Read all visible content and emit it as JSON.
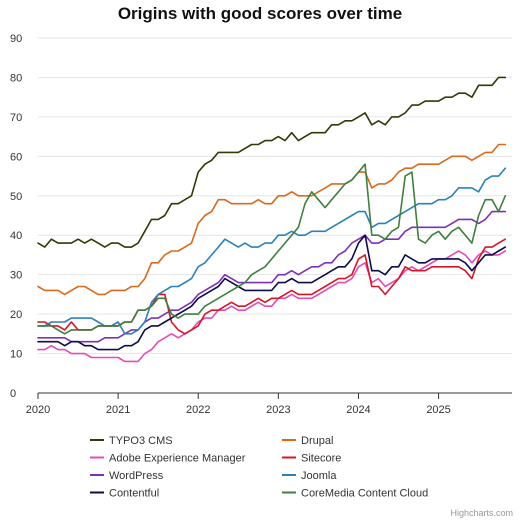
{
  "chart_data": {
    "type": "line",
    "title": "Origins with good scores over time",
    "credit": "Highcharts.com",
    "ylim": [
      0,
      90
    ],
    "y_ticks": [
      0,
      10,
      20,
      30,
      40,
      50,
      60,
      70,
      80,
      90
    ],
    "x_range": [
      "2020-01",
      "2025-12"
    ],
    "x_ticks": [
      "2020",
      "2021",
      "2022",
      "2023",
      "2024",
      "2025"
    ],
    "grid": "horizontal",
    "legend_placement": "bottom",
    "x": [
      "2020-01",
      "2020-02",
      "2020-03",
      "2020-04",
      "2020-05",
      "2020-06",
      "2020-07",
      "2020-08",
      "2020-09",
      "2020-10",
      "2020-11",
      "2020-12",
      "2021-01",
      "2021-02",
      "2021-03",
      "2021-04",
      "2021-05",
      "2021-06",
      "2021-07",
      "2021-08",
      "2021-09",
      "2021-10",
      "2021-11",
      "2021-12",
      "2022-01",
      "2022-02",
      "2022-03",
      "2022-04",
      "2022-05",
      "2022-06",
      "2022-07",
      "2022-08",
      "2022-09",
      "2022-10",
      "2022-11",
      "2022-12",
      "2023-01",
      "2023-02",
      "2023-03",
      "2023-04",
      "2023-05",
      "2023-06",
      "2023-07",
      "2023-08",
      "2023-09",
      "2023-10",
      "2023-11",
      "2023-12",
      "2024-01",
      "2024-02",
      "2024-03",
      "2024-04",
      "2024-05",
      "2024-06",
      "2024-07",
      "2024-08",
      "2024-09",
      "2024-10",
      "2024-11",
      "2024-12",
      "2025-01",
      "2025-02",
      "2025-03",
      "2025-04",
      "2025-05",
      "2025-06",
      "2025-07",
      "2025-08",
      "2025-09",
      "2025-10",
      "2025-11"
    ],
    "series": [
      {
        "name": "TYPO3 CMS",
        "color": "#2f3b06",
        "values": [
          38,
          37,
          39,
          38,
          38,
          38,
          39,
          38,
          39,
          38,
          37,
          38,
          38,
          37,
          37,
          38,
          41,
          44,
          44,
          45,
          48,
          48,
          49,
          50,
          56,
          58,
          59,
          61,
          61,
          61,
          61,
          62,
          63,
          63,
          64,
          64,
          65,
          64,
          66,
          64,
          65,
          66,
          66,
          66,
          68,
          68,
          69,
          69,
          70,
          71,
          68,
          69,
          68,
          70,
          70,
          71,
          73,
          73,
          74,
          74,
          74,
          75,
          75,
          76,
          76,
          75,
          78,
          78,
          78,
          80,
          80
        ]
      },
      {
        "name": "Drupal",
        "color": "#d9691c",
        "values": [
          27,
          26,
          26,
          26,
          25,
          26,
          27,
          27,
          26,
          25,
          25,
          26,
          26,
          26,
          27,
          27,
          29,
          33,
          33,
          35,
          36,
          36,
          37,
          38,
          43,
          45,
          46,
          49,
          49,
          48,
          48,
          48,
          48,
          49,
          48,
          48,
          50,
          50,
          51,
          50,
          50,
          50,
          51,
          52,
          53,
          53,
          53,
          54,
          56,
          56,
          52,
          53,
          53,
          54,
          56,
          57,
          57,
          58,
          58,
          58,
          58,
          59,
          60,
          60,
          60,
          59,
          60,
          61,
          61,
          63,
          63
        ]
      },
      {
        "name": "Adobe Experience Manager",
        "color": "#e44cb6",
        "values": [
          11,
          11,
          12,
          11,
          11,
          10,
          10,
          10,
          9,
          9,
          9,
          9,
          9,
          8,
          8,
          8,
          10,
          11,
          13,
          14,
          15,
          14,
          15,
          16,
          18,
          19,
          19,
          21,
          21,
          22,
          21,
          21,
          22,
          23,
          22,
          22,
          24,
          24,
          25,
          24,
          24,
          24,
          25,
          26,
          27,
          28,
          28,
          29,
          32,
          33,
          28,
          29,
          27,
          28,
          29,
          31,
          32,
          31,
          32,
          33,
          34,
          34,
          35,
          36,
          35,
          33,
          35,
          36,
          35,
          35,
          36
        ]
      },
      {
        "name": "Sitecore",
        "color": "#d51625",
        "values": [
          18,
          18,
          17,
          17,
          16,
          18,
          16,
          16,
          16,
          17,
          17,
          17,
          17,
          18,
          18,
          21,
          21,
          22,
          25,
          25,
          18,
          16,
          15,
          16,
          17,
          20,
          21,
          21,
          22,
          23,
          22,
          22,
          23,
          24,
          23,
          24,
          24,
          25,
          26,
          25,
          25,
          25,
          26,
          27,
          28,
          29,
          29,
          30,
          34,
          35,
          27,
          27,
          25,
          27,
          29,
          32,
          31,
          31,
          31,
          32,
          32,
          32,
          32,
          32,
          31,
          29,
          34,
          37,
          37,
          38,
          39
        ]
      },
      {
        "name": "WordPress",
        "color": "#7e30b5",
        "values": [
          14,
          14,
          14,
          14,
          14,
          13,
          13,
          13,
          13,
          13,
          14,
          14,
          14,
          15,
          16,
          16,
          18,
          19,
          19,
          20,
          21,
          21,
          22,
          23,
          25,
          26,
          27,
          28,
          30,
          29,
          28,
          28,
          28,
          28,
          28,
          28,
          30,
          30,
          31,
          30,
          31,
          32,
          32,
          33,
          33,
          35,
          36,
          38,
          39,
          40,
          38,
          38,
          39,
          39,
          39,
          41,
          42,
          42,
          42,
          42,
          42,
          42,
          43,
          44,
          44,
          44,
          43,
          44,
          46,
          46,
          46
        ]
      },
      {
        "name": "Joomla",
        "color": "#2a82b8",
        "values": [
          17,
          17,
          18,
          18,
          18,
          19,
          19,
          19,
          19,
          18,
          17,
          17,
          18,
          15,
          15,
          16,
          18,
          23,
          25,
          26,
          27,
          27,
          28,
          29,
          32,
          33,
          35,
          37,
          39,
          38,
          37,
          38,
          37,
          37,
          38,
          38,
          40,
          40,
          41,
          40,
          40,
          41,
          41,
          41,
          42,
          43,
          44,
          45,
          46,
          46,
          42,
          43,
          43,
          44,
          45,
          46,
          47,
          48,
          48,
          48,
          49,
          49,
          50,
          52,
          52,
          52,
          51,
          54,
          55,
          55,
          57
        ]
      },
      {
        "name": "Contentful",
        "color": "#0c0c4a",
        "values": [
          13,
          13,
          13,
          13,
          12,
          13,
          13,
          12,
          12,
          11,
          11,
          11,
          11,
          12,
          12,
          13,
          16,
          17,
          17,
          18,
          19,
          20,
          21,
          22,
          24,
          25,
          26,
          27,
          29,
          28,
          27,
          26,
          26,
          26,
          26,
          26,
          28,
          28,
          29,
          28,
          28,
          28,
          29,
          30,
          31,
          32,
          32,
          34,
          38,
          40,
          31,
          31,
          30,
          32,
          32,
          35,
          34,
          33,
          33,
          34,
          34,
          34,
          34,
          34,
          33,
          31,
          33,
          35,
          35,
          36,
          37
        ]
      },
      {
        "name": "CoreMedia Content Cloud",
        "color": "#3f7f3f",
        "values": [
          17,
          17,
          17,
          16,
          15,
          16,
          16,
          16,
          16,
          17,
          17,
          17,
          17,
          18,
          18,
          21,
          21,
          22,
          24,
          24,
          20,
          19,
          20,
          20,
          20,
          22,
          23,
          24,
          25,
          26,
          27,
          28,
          30,
          31,
          32,
          34,
          36,
          38,
          40,
          42,
          48,
          51,
          49,
          47,
          49,
          51,
          53,
          54,
          56,
          58,
          40,
          40,
          39,
          41,
          42,
          55,
          56,
          39,
          38,
          40,
          41,
          39,
          41,
          42,
          40,
          38,
          45,
          49,
          49,
          46,
          50
        ]
      }
    ]
  }
}
